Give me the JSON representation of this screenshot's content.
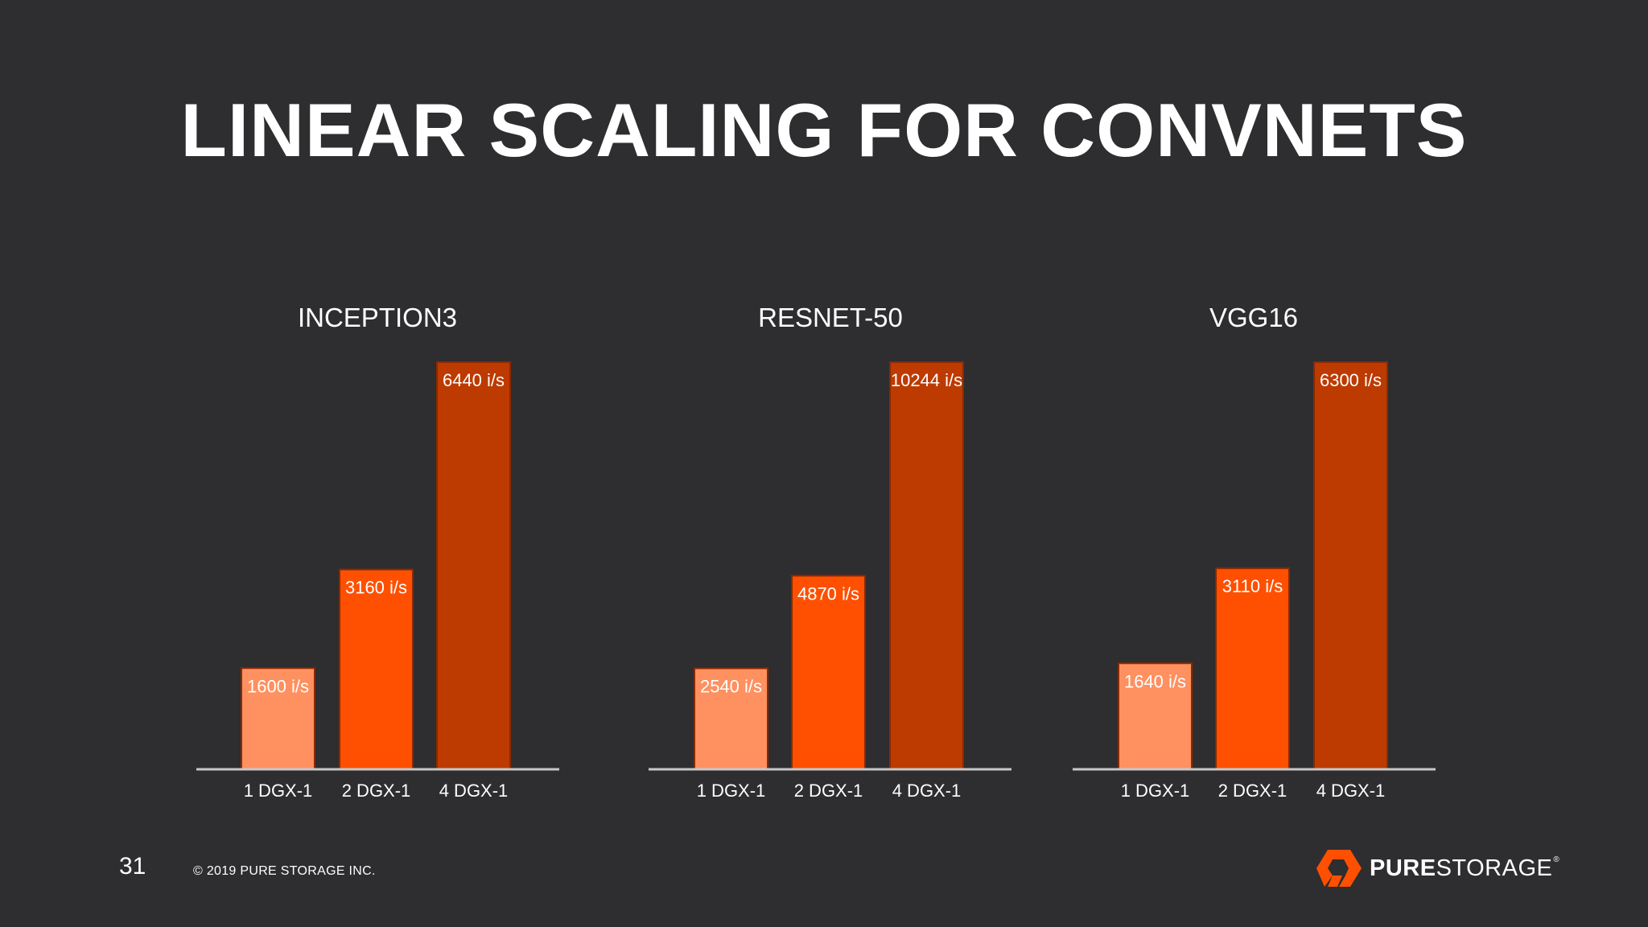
{
  "slide": {
    "title": "LINEAR SCALING FOR CONVNETS",
    "page_number": "31",
    "copyright": "© 2019 PURE STORAGE INC.",
    "logo": {
      "bold": "PURE",
      "light": "STORAGE",
      "mark": "®"
    }
  },
  "colors": {
    "background": "#2e2d2f",
    "bar_light": "#ff9060",
    "bar_mid": "#fe5000",
    "bar_dark": "#bd3a00",
    "bar_border": "#8a2a00",
    "text": "#ffffff",
    "axis": "#c8c8c8",
    "logo_orange": "#fe5000"
  },
  "chart_data": [
    {
      "type": "bar",
      "title": "INCEPTION3",
      "categories": [
        "1 DGX-1",
        "2 DGX-1",
        "4 DGX-1"
      ],
      "values": [
        1600,
        3160,
        6440
      ],
      "data_labels": [
        "1600 i/s",
        "3160 i/s",
        "6440 i/s"
      ],
      "ylim": [
        0,
        6440
      ],
      "grid": false
    },
    {
      "type": "bar",
      "title": "RESNET-50",
      "categories": [
        "1 DGX-1",
        "2 DGX-1",
        "4 DGX-1"
      ],
      "values": [
        2540,
        4870,
        10244
      ],
      "data_labels": [
        "2540 i/s",
        "4870 i/s",
        "10244 i/s"
      ],
      "ylim": [
        0,
        10244
      ],
      "grid": false
    },
    {
      "type": "bar",
      "title": "VGG16",
      "categories": [
        "1 DGX-1",
        "2 DGX-1",
        "4 DGX-1"
      ],
      "values": [
        1640,
        3110,
        6300
      ],
      "data_labels": [
        "1640 i/s",
        "3110 i/s",
        "6300 i/s"
      ],
      "ylim": [
        0,
        6300
      ],
      "grid": false
    }
  ]
}
